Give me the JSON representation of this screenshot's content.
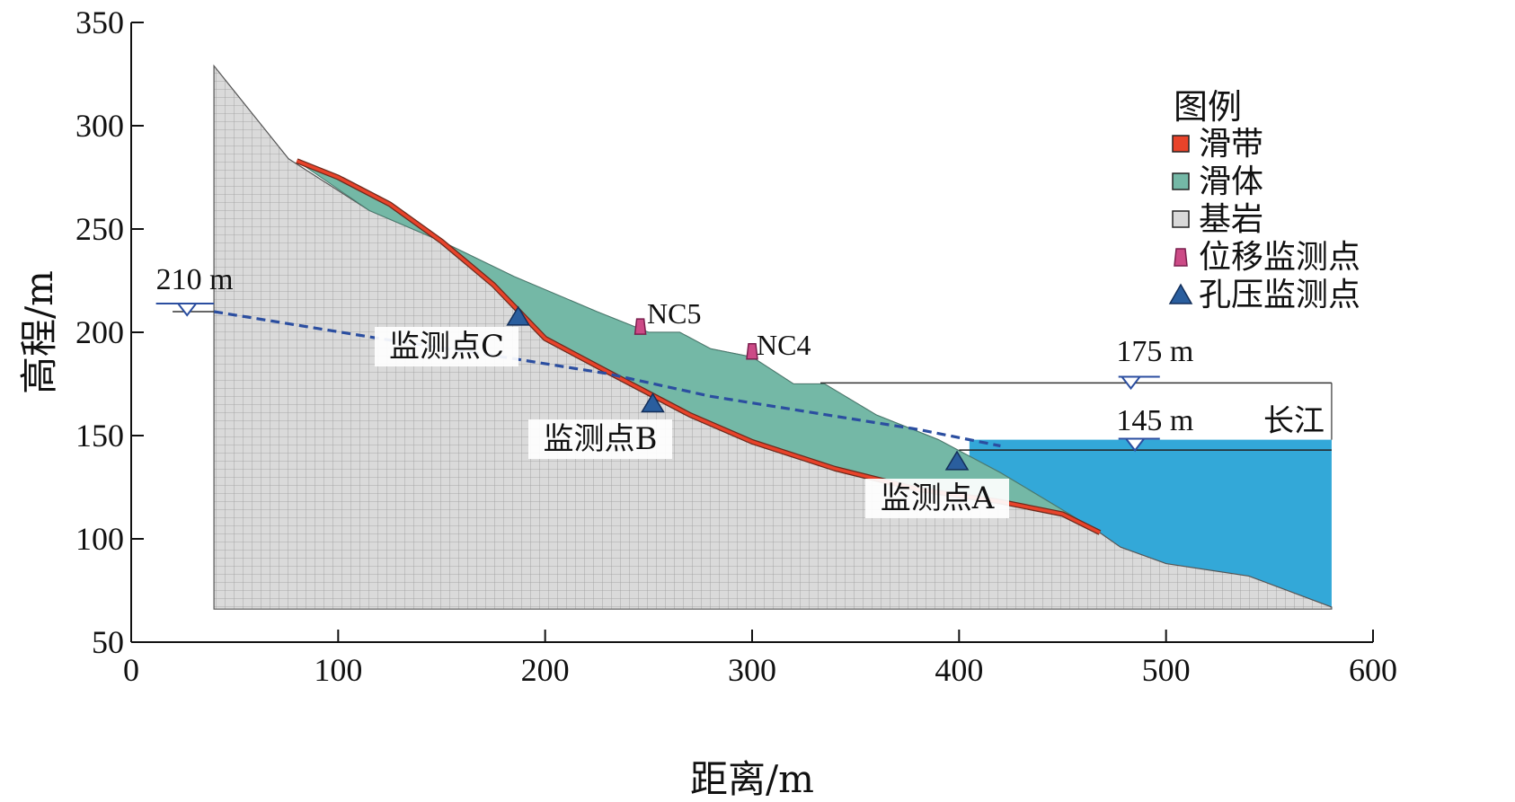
{
  "chart_data": {
    "type": "cross-section",
    "xlabel": "距离/m",
    "ylabel": "高程/m",
    "xlim": [
      0,
      600
    ],
    "ylim": [
      50,
      350
    ],
    "xticks": [
      "0",
      "100",
      "200",
      "300",
      "400",
      "500",
      "600"
    ],
    "yticks": [
      "50",
      "100",
      "150",
      "200",
      "250",
      "300",
      "350"
    ],
    "legend": {
      "title": "图例",
      "position": "top-right",
      "items": [
        {
          "label": "滑带",
          "color": "#e8432a",
          "marker": "square"
        },
        {
          "label": "滑体",
          "color": "#74b8a6",
          "marker": "square"
        },
        {
          "label": "基岩",
          "color": "#d9d9d9",
          "marker": "square"
        },
        {
          "label": "位移监测点",
          "color": "#cc4a86",
          "marker": "trapezoid"
        },
        {
          "label": "孔压监测点",
          "color": "#2a5e9e",
          "marker": "triangle"
        }
      ]
    },
    "water_levels": [
      {
        "label": "210 m",
        "elevation": 210
      },
      {
        "label": "175 m",
        "elevation": 175
      },
      {
        "label": "145 m",
        "elevation": 145
      }
    ],
    "river_label": "长江",
    "pore_pressure_points": [
      {
        "label": "监测点A",
        "x": 399,
        "y": 137
      },
      {
        "label": "监测点B",
        "x": 252,
        "y": 165
      },
      {
        "label": "监测点C",
        "x": 187,
        "y": 207
      }
    ],
    "displacement_points": [
      {
        "label": "NC5",
        "x": 246,
        "y": 203
      },
      {
        "label": "NC4",
        "x": 300,
        "y": 191
      }
    ],
    "ground_surface": [
      [
        40,
        329
      ],
      [
        76,
        284
      ],
      [
        115,
        259
      ],
      [
        150,
        244
      ],
      [
        185,
        227
      ],
      [
        225,
        210
      ],
      [
        250,
        200
      ],
      [
        265,
        200
      ],
      [
        280,
        192
      ],
      [
        300,
        188
      ],
      [
        320,
        175
      ],
      [
        335,
        175
      ],
      [
        360,
        160
      ],
      [
        390,
        148
      ],
      [
        420,
        132
      ],
      [
        445,
        117
      ],
      [
        468,
        103
      ],
      [
        478,
        96
      ],
      [
        500,
        88
      ],
      [
        540,
        82
      ],
      [
        580,
        67
      ]
    ],
    "slip_surface": [
      [
        80,
        283
      ],
      [
        100,
        275
      ],
      [
        125,
        262
      ],
      [
        150,
        244
      ],
      [
        175,
        223
      ],
      [
        200,
        197
      ],
      [
        230,
        181
      ],
      [
        270,
        160
      ],
      [
        300,
        147
      ],
      [
        340,
        134
      ],
      [
        380,
        124
      ],
      [
        420,
        118
      ],
      [
        450,
        112
      ],
      [
        468,
        103
      ]
    ],
    "phreatic_line": [
      [
        40,
        210
      ],
      [
        120,
        197
      ],
      [
        180,
        188
      ],
      [
        230,
        180
      ],
      [
        280,
        169
      ],
      [
        330,
        161
      ],
      [
        380,
        153
      ],
      [
        420,
        145
      ]
    ],
    "colors": {
      "bedrock": "#d9d9d9",
      "mesh": "#9a9a9a",
      "slide_body": "#74b8a6",
      "slip_zone": "#e8432a",
      "river": "#33a8d8",
      "phreatic": "#2b4ea0",
      "marker_pore": "#2a5e9e",
      "marker_disp": "#cc4a86"
    }
  }
}
